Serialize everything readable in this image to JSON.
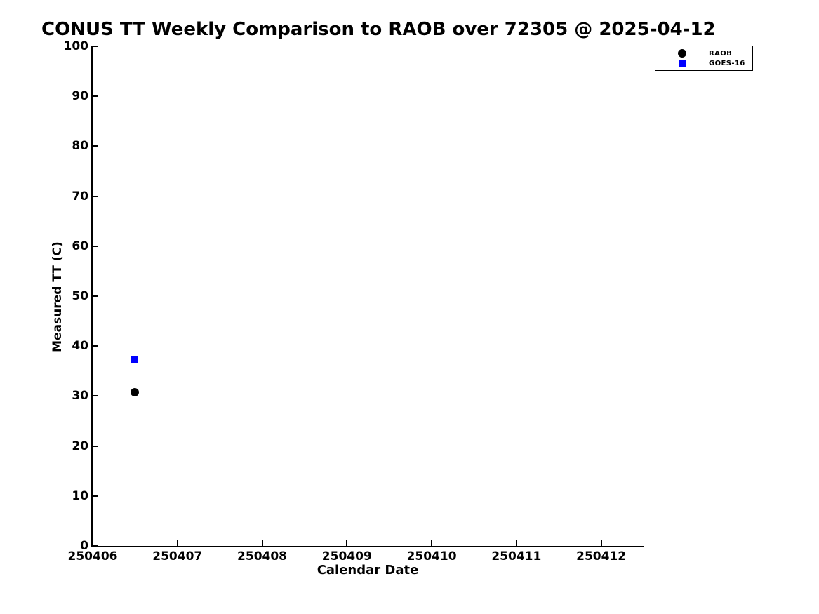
{
  "page": {
    "background_color": "#ffffff",
    "text_color": "#000000"
  },
  "chart_data": {
    "type": "scatter",
    "title": "CONUS TT Weekly Comparison to RAOB over 72305 @ 2025-04-12",
    "xlabel": "Calendar Date",
    "ylabel": "Measured TT (C)",
    "xlim": [
      250406,
      250412.5
    ],
    "ylim": [
      0,
      100
    ],
    "x_ticks": [
      250406,
      250407,
      250408,
      250409,
      250410,
      250411,
      250412
    ],
    "x_tick_labels": [
      "250406",
      "250407",
      "250408",
      "250409",
      "250410",
      "250411",
      "250412"
    ],
    "y_ticks": [
      0,
      10,
      20,
      30,
      40,
      50,
      60,
      70,
      80,
      90,
      100
    ],
    "y_tick_labels": [
      "0",
      "10",
      "20",
      "30",
      "40",
      "50",
      "60",
      "70",
      "80",
      "90",
      "100"
    ],
    "grid": false,
    "legend": {
      "position": "upper-right",
      "entries": [
        "RAOB",
        "GOES-16"
      ]
    },
    "series": [
      {
        "name": "RAOB",
        "marker": "circle",
        "color": "#000000",
        "points": [
          {
            "x": 250406.5,
            "y": 30.8
          }
        ]
      },
      {
        "name": "GOES-16",
        "marker": "square",
        "color": "#0000ff",
        "points": [
          {
            "x": 250406.5,
            "y": 37.2
          }
        ]
      }
    ]
  }
}
